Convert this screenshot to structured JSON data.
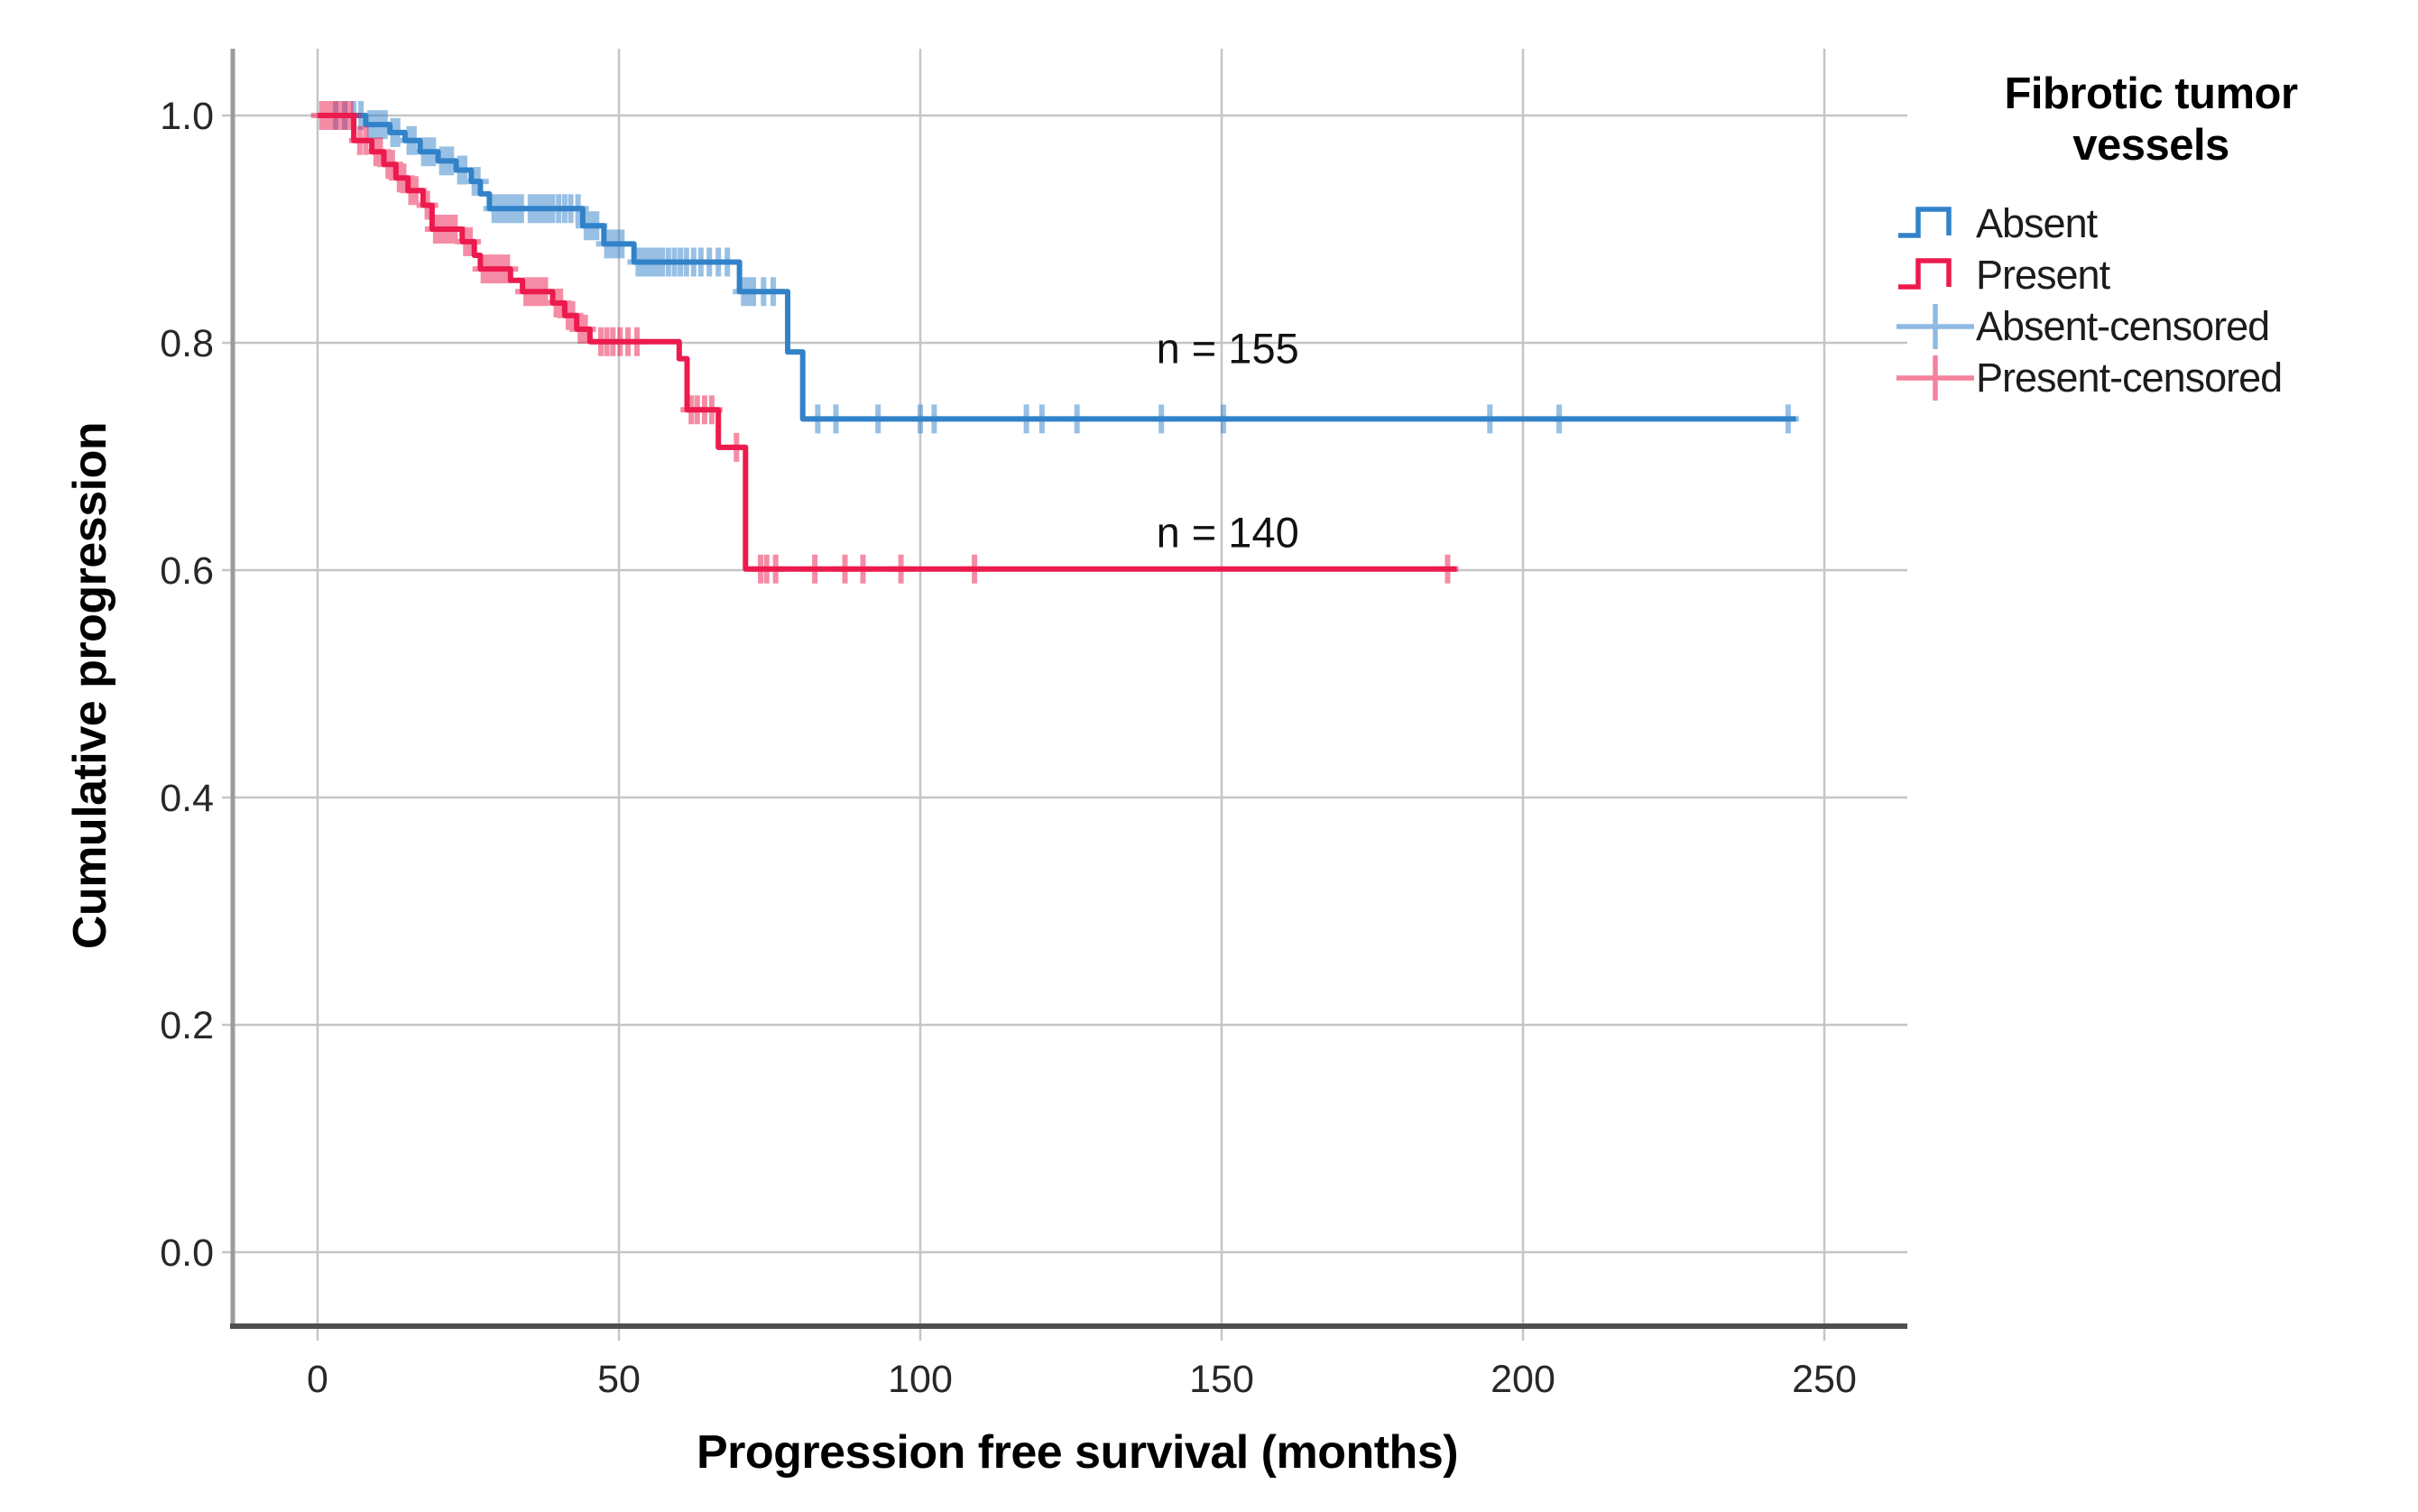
{
  "chart_data": {
    "type": "line",
    "subtype": "kaplan_meier_step_survival",
    "title": "",
    "xlabel": "Progression free survival (months)",
    "ylabel": "Cumulative progression",
    "x_ticks": [
      0,
      50,
      100,
      150,
      200,
      250
    ],
    "x_tick_labels": [
      "0",
      "50",
      "100",
      "150",
      "200",
      "250"
    ],
    "y_ticks": [
      1.0,
      0.8,
      0.6,
      0.4,
      0.2,
      0.0
    ],
    "y_tick_labels": [
      "1.0",
      "0.8",
      "0.6",
      "0.4",
      "0.2",
      "0.0"
    ],
    "xlim": [
      0,
      250
    ],
    "ylim": [
      0.0,
      1.0
    ],
    "grid": true,
    "legend_position": "right",
    "legend": {
      "title_line1": "Fibrotic tumor",
      "title_line2": "vessels",
      "items": [
        {
          "label": "Absent",
          "glyph": "step-line",
          "color": "#3182C9"
        },
        {
          "label": "Present",
          "glyph": "step-line",
          "color": "#EC1A4D"
        },
        {
          "label": "Absent-censored",
          "glyph": "plus-line",
          "color": "#3182C9"
        },
        {
          "label": "Present-censored",
          "glyph": "plus-line",
          "color": "#EC1A4D"
        }
      ]
    },
    "annotations": [
      {
        "text": "n = 155",
        "x": 151,
        "y": 0.795,
        "series": "Absent"
      },
      {
        "text": "n = 140",
        "x": 151,
        "y": 0.633,
        "series": "Present"
      }
    ],
    "series": [
      {
        "name": "Absent",
        "n": 155,
        "color": "#3182C9",
        "start": [
          0,
          1.0
        ],
        "end_x": 245.3,
        "steps": [
          [
            8,
            0.992
          ],
          [
            12,
            0.985
          ],
          [
            14.5,
            0.978
          ],
          [
            17,
            0.968
          ],
          [
            20,
            0.96
          ],
          [
            23,
            0.952
          ],
          [
            25.5,
            0.942
          ],
          [
            27,
            0.931
          ],
          [
            28.5,
            0.918
          ],
          [
            44,
            0.903
          ],
          [
            47.5,
            0.887
          ],
          [
            52.5,
            0.871
          ],
          [
            70,
            0.845
          ],
          [
            78,
            0.792
          ],
          [
            80.5,
            0.733
          ]
        ],
        "censors": [
          [
            3,
            1.0
          ],
          [
            4.5,
            1.0
          ],
          [
            6,
            1.0
          ],
          [
            7.2,
            1.0
          ],
          [
            8.7,
            0.992
          ],
          [
            9.5,
            0.992
          ],
          [
            10.3,
            0.992
          ],
          [
            11.2,
            0.992
          ],
          [
            12.5,
            0.985
          ],
          [
            13.3,
            0.985
          ],
          [
            15.2,
            0.978
          ],
          [
            16,
            0.978
          ],
          [
            17.6,
            0.968
          ],
          [
            18.4,
            0.968
          ],
          [
            19.2,
            0.968
          ],
          [
            20.6,
            0.96
          ],
          [
            21.4,
            0.96
          ],
          [
            22.2,
            0.96
          ],
          [
            23.6,
            0.952
          ],
          [
            24.4,
            0.952
          ],
          [
            26,
            0.942
          ],
          [
            26.6,
            0.942
          ],
          [
            29.3,
            0.918
          ],
          [
            30,
            0.918
          ],
          [
            30.8,
            0.918
          ],
          [
            31.5,
            0.918
          ],
          [
            32.3,
            0.918
          ],
          [
            33,
            0.918
          ],
          [
            33.8,
            0.918
          ],
          [
            35.3,
            0.918
          ],
          [
            36,
            0.918
          ],
          [
            36.8,
            0.918
          ],
          [
            37.5,
            0.918
          ],
          [
            38.3,
            0.918
          ],
          [
            39,
            0.918
          ],
          [
            40,
            0.918
          ],
          [
            41,
            0.918
          ],
          [
            42,
            0.918
          ],
          [
            43.2,
            0.918
          ],
          [
            44.6,
            0.903
          ],
          [
            45.4,
            0.903
          ],
          [
            46.3,
            0.903
          ],
          [
            48,
            0.887
          ],
          [
            48.8,
            0.887
          ],
          [
            49.7,
            0.887
          ],
          [
            50.5,
            0.887
          ],
          [
            53.2,
            0.871
          ],
          [
            54,
            0.871
          ],
          [
            54.8,
            0.871
          ],
          [
            55.6,
            0.871
          ],
          [
            56.4,
            0.871
          ],
          [
            57.2,
            0.871
          ],
          [
            58.2,
            0.871
          ],
          [
            59.2,
            0.871
          ],
          [
            60.2,
            0.871
          ],
          [
            61.2,
            0.871
          ],
          [
            62.4,
            0.871
          ],
          [
            63.6,
            0.871
          ],
          [
            65,
            0.871
          ],
          [
            66.5,
            0.871
          ],
          [
            68,
            0.871
          ],
          [
            70.7,
            0.845
          ],
          [
            71.5,
            0.845
          ],
          [
            72.3,
            0.845
          ],
          [
            74,
            0.845
          ],
          [
            75.6,
            0.845
          ],
          [
            83,
            0.733
          ],
          [
            86,
            0.733
          ],
          [
            93,
            0.733
          ],
          [
            100,
            0.733
          ],
          [
            102.3,
            0.733
          ],
          [
            117.6,
            0.733
          ],
          [
            120.2,
            0.733
          ],
          [
            126,
            0.733
          ],
          [
            140,
            0.733
          ],
          [
            150.3,
            0.733
          ],
          [
            194.5,
            0.733
          ],
          [
            206,
            0.733
          ],
          [
            244,
            0.733
          ]
        ]
      },
      {
        "name": "Present",
        "n": 140,
        "color": "#EC1A4D",
        "start": [
          0,
          1.0
        ],
        "end_x": 189,
        "steps": [
          [
            6,
            0.978
          ],
          [
            9,
            0.968
          ],
          [
            11,
            0.957
          ],
          [
            13,
            0.945
          ],
          [
            15,
            0.934
          ],
          [
            17.5,
            0.921
          ],
          [
            19,
            0.9
          ],
          [
            24,
            0.889
          ],
          [
            26,
            0.877
          ],
          [
            27,
            0.865
          ],
          [
            32,
            0.855
          ],
          [
            34,
            0.845
          ],
          [
            39,
            0.835
          ],
          [
            41,
            0.824
          ],
          [
            43,
            0.812
          ],
          [
            45.2,
            0.801
          ],
          [
            60,
            0.786
          ],
          [
            61.3,
            0.741
          ],
          [
            66.5,
            0.708
          ],
          [
            71,
            0.601
          ]
        ],
        "censors": [
          [
            0.7,
            1.0
          ],
          [
            1.5,
            1.0
          ],
          [
            2.3,
            1.0
          ],
          [
            3.1,
            1.0
          ],
          [
            3.9,
            1.0
          ],
          [
            4.7,
            1.0
          ],
          [
            5.5,
            1.0
          ],
          [
            7,
            0.978
          ],
          [
            8,
            0.978
          ],
          [
            9.7,
            0.968
          ],
          [
            10.4,
            0.968
          ],
          [
            11.7,
            0.957
          ],
          [
            12.4,
            0.957
          ],
          [
            13.6,
            0.945
          ],
          [
            14.3,
            0.945
          ],
          [
            15.5,
            0.934
          ],
          [
            16.3,
            0.934
          ],
          [
            18.2,
            0.921
          ],
          [
            19.6,
            0.9
          ],
          [
            20.4,
            0.9
          ],
          [
            21.2,
            0.9
          ],
          [
            22,
            0.9
          ],
          [
            22.8,
            0.9
          ],
          [
            24.6,
            0.889
          ],
          [
            25.3,
            0.889
          ],
          [
            27.5,
            0.865
          ],
          [
            28.3,
            0.865
          ],
          [
            29.1,
            0.865
          ],
          [
            29.9,
            0.865
          ],
          [
            30.7,
            0.865
          ],
          [
            31.5,
            0.865
          ],
          [
            34.6,
            0.845
          ],
          [
            35.4,
            0.845
          ],
          [
            36.2,
            0.845
          ],
          [
            37,
            0.845
          ],
          [
            37.8,
            0.845
          ],
          [
            39.6,
            0.835
          ],
          [
            40.3,
            0.835
          ],
          [
            41.6,
            0.824
          ],
          [
            42.3,
            0.824
          ],
          [
            43.6,
            0.812
          ],
          [
            44.4,
            0.812
          ],
          [
            47,
            0.801
          ],
          [
            48,
            0.801
          ],
          [
            49,
            0.801
          ],
          [
            50.2,
            0.801
          ],
          [
            51.5,
            0.801
          ],
          [
            53,
            0.801
          ],
          [
            62,
            0.741
          ],
          [
            63,
            0.741
          ],
          [
            64.2,
            0.741
          ],
          [
            65.4,
            0.741
          ],
          [
            69.5,
            0.708
          ],
          [
            73.5,
            0.601
          ],
          [
            74.5,
            0.601
          ],
          [
            76,
            0.601
          ],
          [
            82.5,
            0.601
          ],
          [
            87.5,
            0.601
          ],
          [
            90.5,
            0.601
          ],
          [
            96.8,
            0.601
          ],
          [
            109,
            0.601
          ],
          [
            187.5,
            0.601
          ]
        ]
      }
    ]
  },
  "colors": {
    "absent_blue": "#3182C9",
    "present_red": "#EC1A4D",
    "gridline": "#C5C5C5",
    "axis_left_spine": "#9B9B9B",
    "axis_bottom_spine": "#4F4F4F",
    "tick_label_text": "#282828",
    "annotation_text": "#111111"
  }
}
